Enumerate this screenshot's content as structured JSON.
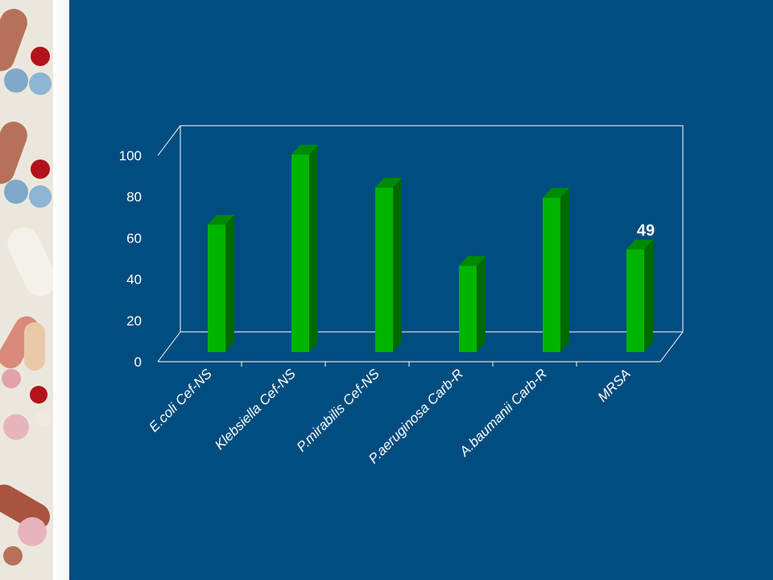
{
  "colors": {
    "slide_background": "#014d80",
    "bar_front": "#00b400",
    "bar_side": "#006a00",
    "bar_top": "#008a00",
    "frame_line": "#ffffff",
    "text": "#ffffff"
  },
  "decor": {
    "left_strip": "pills-photo-strip"
  },
  "chart_data": {
    "type": "bar",
    "style": "3d-column",
    "categories": [
      "E.coli Cef-NS",
      "Klebsiella Cef-NS",
      "P.mirabilis Cef-NS",
      "P.aeruginosa Carb-R",
      "A.baumanii Carb-R",
      "MRSA"
    ],
    "values": [
      61,
      95,
      79,
      41,
      74,
      49
    ],
    "data_labels": [
      {
        "index": 5,
        "text": "49"
      }
    ],
    "ylim": [
      0,
      100
    ],
    "yticks": [
      "0",
      "20",
      "40",
      "60",
      "80",
      "100"
    ],
    "title": "",
    "xlabel": "",
    "ylabel": "",
    "grid": false,
    "legend": "none"
  }
}
